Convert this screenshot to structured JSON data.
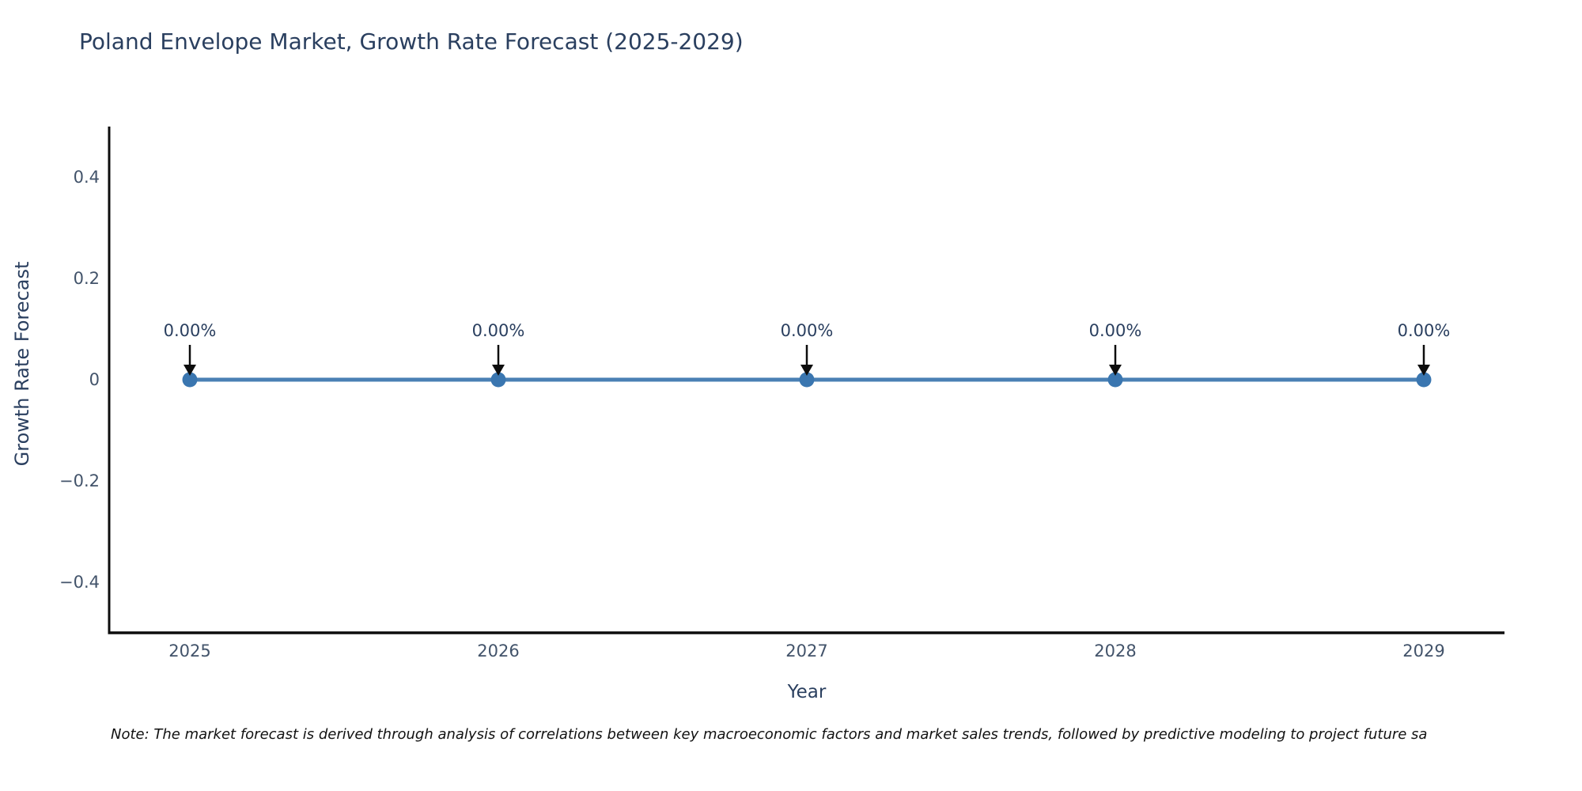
{
  "title": "Poland Envelope Market, Growth Rate Forecast (2025-2029)",
  "chart_data": {
    "type": "line",
    "title": "Poland Envelope Market, Growth Rate Forecast (2025-2029)",
    "categories": [
      "2025",
      "2026",
      "2027",
      "2028",
      "2029"
    ],
    "series": [
      {
        "name": "Growth Rate Forecast",
        "values": [
          0,
          0,
          0,
          0,
          0
        ],
        "point_labels": [
          "0.00%",
          "0.00%",
          "0.00%",
          "0.00%",
          "0.00%"
        ]
      }
    ],
    "xlabel": "Year",
    "ylabel": "Growth Rate Forecast",
    "ylim": [
      -0.5,
      0.5
    ],
    "yticks": [
      "0.4",
      "0.2",
      "0",
      "−0.2",
      "−0.4"
    ],
    "grid": false,
    "legend_position": "none",
    "annotation_style": "down-arrow",
    "colors": {
      "line": "#4a80b4",
      "marker": "#36香1b0",
      "marker_fill": "#3a76b0",
      "axis": "#0d0d0d",
      "arrow": "#0d0d0d",
      "title_text": "#2a3f5f",
      "tick_text": "#42536a"
    }
  },
  "note": "Note: The market forecast is derived through analysis of correlations between key macroeconomic factors and market sales trends, followed by predictive modeling to project future sa"
}
